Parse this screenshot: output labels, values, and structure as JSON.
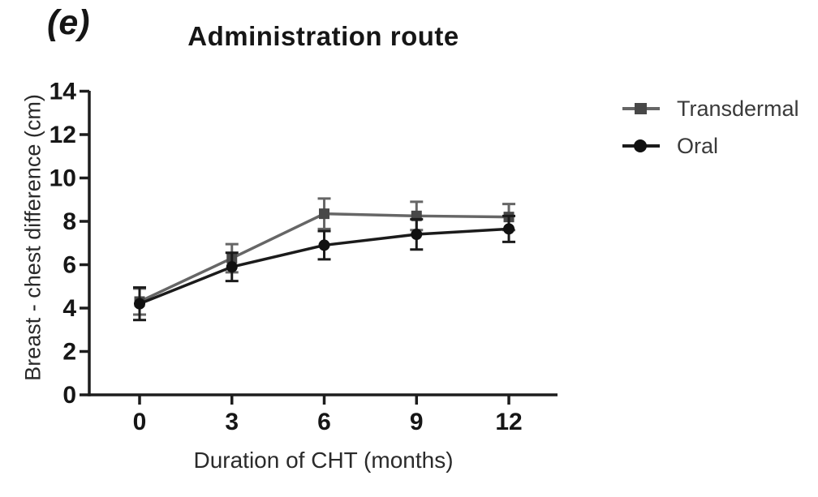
{
  "panel_label": "(e)",
  "title": "Administration route",
  "legend": {
    "entries": [
      {
        "label": "Transdermal",
        "marker": "square"
      },
      {
        "label": "Oral",
        "marker": "circle"
      }
    ]
  },
  "colors": {
    "axis": "#1d1d1d",
    "tick_text": "#161616",
    "transdermal_line": "#666666",
    "transdermal_marker": "#484848",
    "oral_line": "#1b1b1b",
    "oral_marker": "#111111"
  },
  "chart_data": {
    "type": "line",
    "title": "Administration route",
    "xlabel": "Duration of CHT (months)",
    "ylabel": "Breast - chest difference (cm)",
    "x": [
      0,
      3,
      6,
      9,
      12
    ],
    "x_tick_labels": [
      "0",
      "3",
      "6",
      "9",
      "12"
    ],
    "y_ticks": [
      0,
      2,
      4,
      6,
      8,
      10,
      12,
      14
    ],
    "ylim": [
      0,
      14
    ],
    "xlim": [
      -1.7,
      13.6
    ],
    "grid": false,
    "legend_position": "right",
    "error_bars": true,
    "series": [
      {
        "name": "Transdermal",
        "marker": "square",
        "color": "#666666",
        "marker_color": "#484848",
        "values": [
          4.3,
          6.3,
          8.35,
          8.25,
          8.2
        ],
        "errors": [
          0.6,
          0.65,
          0.7,
          0.65,
          0.6
        ]
      },
      {
        "name": "Oral",
        "marker": "circle",
        "color": "#1b1b1b",
        "marker_color": "#111111",
        "values": [
          4.2,
          5.9,
          6.9,
          7.4,
          7.65
        ],
        "errors": [
          0.75,
          0.65,
          0.65,
          0.7,
          0.6
        ]
      }
    ]
  }
}
